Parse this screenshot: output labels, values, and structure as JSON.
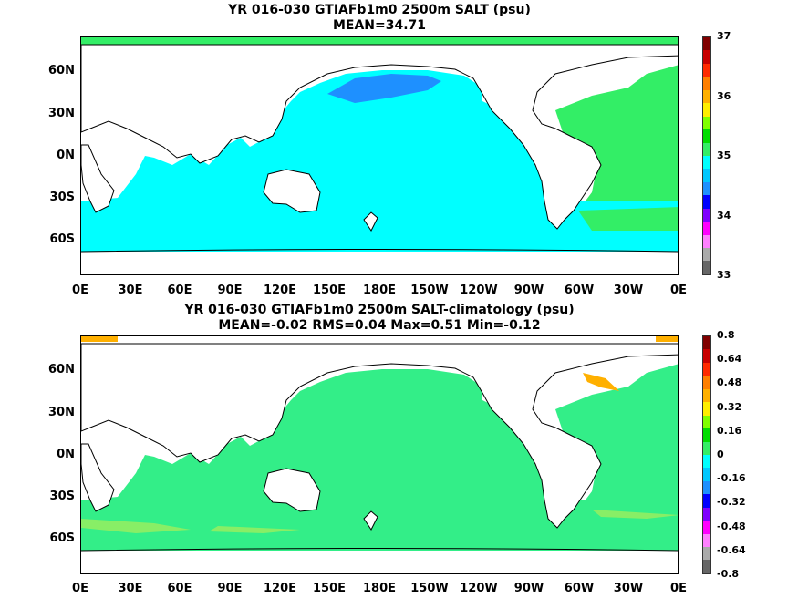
{
  "top": {
    "title1": "YR 016-030 GTIAFb1m0 2500m SALT (psu)",
    "title2": "MEAN=34.71",
    "ocean_color": "#00ffff",
    "atlantic_color": "#33ee66",
    "npac_color": "#1e90ff",
    "colorbar": {
      "labels": [
        "37",
        "36",
        "35",
        "34",
        "33"
      ],
      "colors": [
        "#800000",
        "#c80000",
        "#ff2a00",
        "#ff7f00",
        "#ffb000",
        "#ffee00",
        "#80ff00",
        "#00dd00",
        "#33ee66",
        "#00ffff",
        "#00c8ff",
        "#1e90ff",
        "#0000ff",
        "#8000ff",
        "#ff00ff",
        "#ff80ff",
        "#aaaaaa",
        "#666666"
      ]
    }
  },
  "bottom": {
    "title1": "YR 016-030 GTIAFb1m0 2500m SALT-climatology (psu)",
    "title2": "MEAN=-0.02   RMS=0.04   Max=0.51   Min=-0.12",
    "ocean_color": "#33ee88",
    "south_band_color": "#88ee66",
    "colorbar": {
      "labels": [
        "0.8",
        "0.64",
        "0.48",
        "0.32",
        "0.16",
        "0",
        "-0.16",
        "-0.32",
        "-0.48",
        "-0.64",
        "-0.8"
      ],
      "colors": [
        "#800000",
        "#c80000",
        "#ff2a00",
        "#ff7f00",
        "#ffb000",
        "#ffee00",
        "#80ff00",
        "#00dd00",
        "#33ee66",
        "#00ffff",
        "#00c8ff",
        "#1e90ff",
        "#0000ff",
        "#8000ff",
        "#ff00ff",
        "#ff80ff",
        "#aaaaaa",
        "#666666"
      ]
    }
  },
  "lat_labels": [
    "60N",
    "30N",
    "0N",
    "30S",
    "60S"
  ],
  "lon_labels": [
    "0E",
    "30E",
    "60E",
    "90E",
    "120E",
    "150E",
    "180E",
    "150W",
    "120W",
    "90W",
    "60W",
    "30W",
    "0E"
  ]
}
